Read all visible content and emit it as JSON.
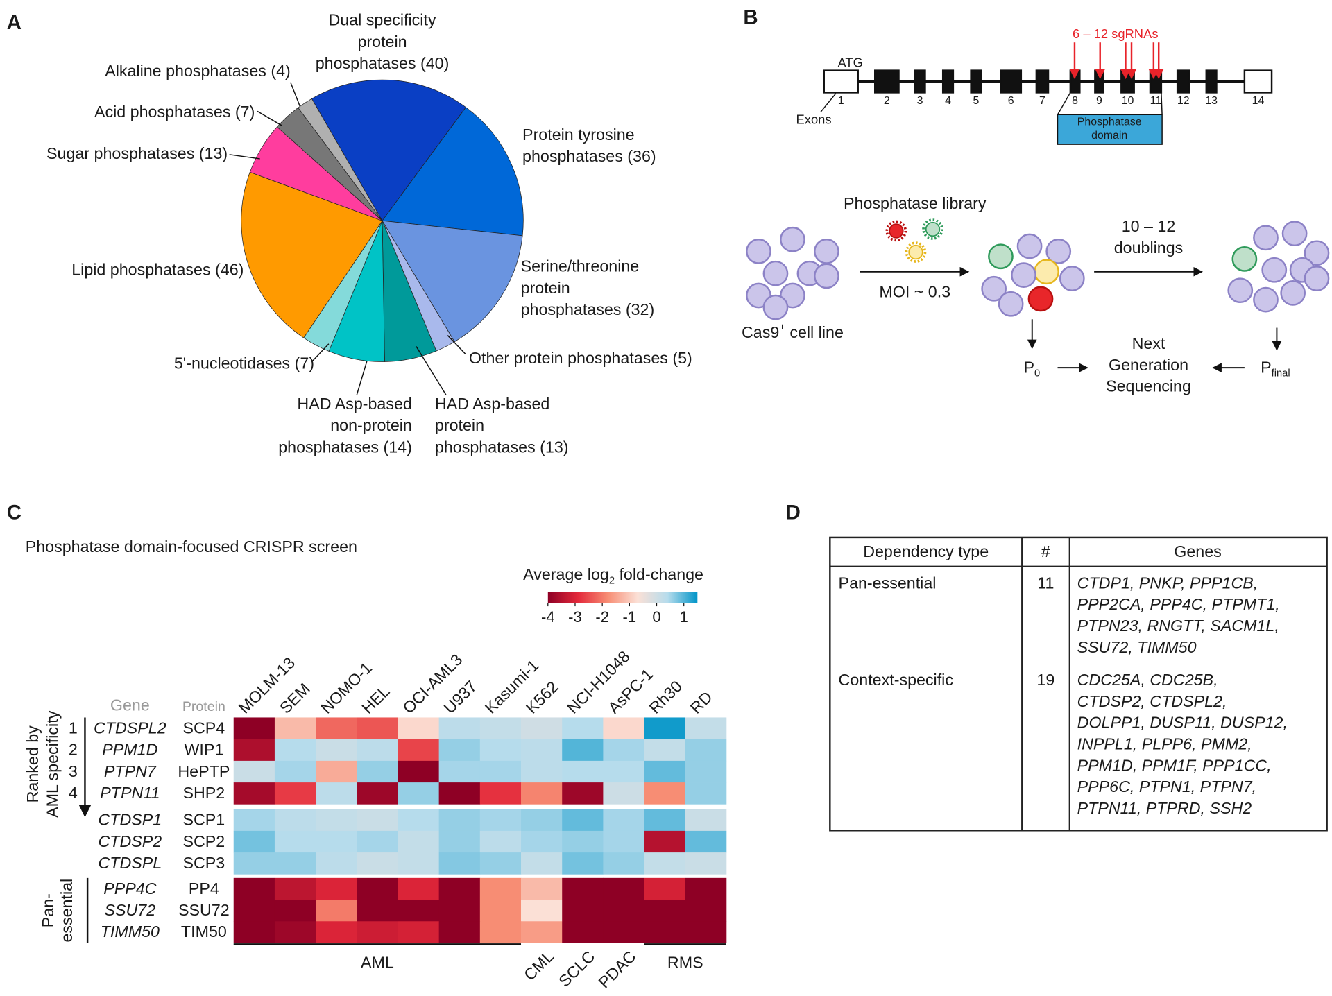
{
  "panel_labels": [
    "A",
    "B",
    "C",
    "D"
  ],
  "chart_data": [
    {
      "type": "pie",
      "categories": [
        "Dual specificity\nprotein\nphosphatases (40)",
        "Protein tyrosine\nphosphatases (36)",
        "Serine/threonine\nprotein\nphosphatases (32)",
        "Other protein phosphatases (5)",
        "HAD Asp-based\nprotein\nphosphatases (13)",
        "HAD Asp-based\nnon-protein\nphosphatases (14)",
        "5'-nucleotidases (7)",
        "Lipid phosphatases (46)",
        "Sugar phosphatases (13)",
        "Acid phosphatases (7)",
        "Alkaline phosphatases (4)"
      ],
      "values": [
        40,
        36,
        32,
        5,
        13,
        14,
        7,
        46,
        13,
        7,
        4
      ],
      "colors": [
        "#0a3fc4",
        "#0068d8",
        "#6a94e0",
        "#a9b9ec",
        "#009a9a",
        "#00c3c6",
        "#84dada",
        "#ff9a00",
        "#ff3d9e",
        "#777777",
        "#b0b0b0"
      ]
    },
    {
      "type": "heatmap",
      "title": "Phosphatase domain-focused CRISPR screen",
      "colorbar_label": [
        "Average log",
        "2",
        " fold-change"
      ],
      "zlim": [
        -4,
        1.5
      ],
      "zticks": [
        -4,
        -3,
        -2,
        -1,
        0,
        1
      ],
      "colormap": [
        "#8e0025",
        "#e3283a",
        "#f78d74",
        "#fbe0d6",
        "#b6dcec",
        "#0094c8"
      ],
      "gene_header": "Gene",
      "protein_header": "Protein",
      "column_groups": [
        {
          "label": "AML",
          "columns": [
            "MOLM-13",
            "SEM",
            "NOMO-1",
            "HEL",
            "OCI-AML3",
            "U937",
            "Kasumi-1"
          ]
        },
        {
          "label": "CML",
          "columns": [
            "K562"
          ]
        },
        {
          "label": "SCLC",
          "columns": [
            "NCI-H1048"
          ]
        },
        {
          "label": "PDAC",
          "columns": [
            "AsPC-1"
          ]
        },
        {
          "label": "RMS",
          "columns": [
            "Rh30",
            "RD"
          ]
        }
      ],
      "row_groups": [
        {
          "label": [
            "Ranked by",
            "AML specificity"
          ],
          "ranks": [
            "1",
            "2",
            "3",
            "4"
          ],
          "genes": [
            "CTDSPL2",
            "PPM1D",
            "PTPN7",
            "PTPN11"
          ],
          "proteins": [
            "SCP4",
            "WIP1",
            "HePTP",
            "SHP2"
          ],
          "values": [
            [
              -4,
              -1.2,
              -2.2,
              -2.4,
              -0.8,
              0.3,
              0.2,
              0,
              0.4,
              -0.8,
              1.4,
              0.2
            ],
            [
              -3.6,
              0.4,
              0.1,
              0.3,
              -2.6,
              0.6,
              0.4,
              0.3,
              1.0,
              0.5,
              0.2,
              0.6
            ],
            [
              0.1,
              0.5,
              -1.4,
              0.6,
              -4,
              0.5,
              0.5,
              0.3,
              0.4,
              0.4,
              0.9,
              0.6
            ],
            [
              -3.7,
              -2.7,
              0.3,
              -3.8,
              0.6,
              -4,
              -2.8,
              -1.9,
              -3.8,
              0.05,
              -1.8,
              0.6
            ]
          ]
        },
        {
          "genes": [
            "CTDSP1",
            "CTDSP2",
            "CTDSPL"
          ],
          "proteins": [
            "SCP1",
            "SCP2",
            "SCP3"
          ],
          "values": [
            [
              0.5,
              0.3,
              0.2,
              0.1,
              0.4,
              0.6,
              0.5,
              0.6,
              0.9,
              0.5,
              0.9,
              0.1
            ],
            [
              0.8,
              0.4,
              0.4,
              0.5,
              0.2,
              0.6,
              0.3,
              0.5,
              0.6,
              0.5,
              -3.5,
              0.9
            ],
            [
              0.6,
              0.6,
              0.3,
              0.1,
              0.2,
              0.7,
              0.6,
              0.2,
              0.8,
              0.6,
              0.2,
              0.1
            ]
          ]
        },
        {
          "label": [
            "Pan-",
            "essential"
          ],
          "genes": [
            "PPP4C",
            "SSU72",
            "TIMM50"
          ],
          "proteins": [
            "PP4",
            "SSU72",
            "TIM50"
          ],
          "values": [
            [
              -4,
              -3.4,
              -3.0,
              -4,
              -3.0,
              -4,
              -1.8,
              -1.2,
              -4,
              -4,
              -3.1,
              -4
            ],
            [
              -4,
              -4,
              -2.0,
              -4,
              -4,
              -4,
              -1.8,
              -0.7,
              -4,
              -4,
              -4,
              -4
            ],
            [
              -4,
              -3.8,
              -3.0,
              -3.2,
              -3.1,
              -4,
              -1.8,
              -1.6,
              -4,
              -4,
              -4,
              -4
            ]
          ]
        }
      ]
    }
  ],
  "gene_structure": {
    "start_codon": "ATG",
    "exons_label": "Exons",
    "exon_numbers": [
      "1",
      "2",
      "3",
      "4",
      "5",
      "6",
      "7",
      "8",
      "9",
      "10",
      "11",
      "12",
      "13",
      "14"
    ],
    "sgrna_label": "6 – 12 sgRNAs",
    "domain_label": [
      "Phosphatase",
      "domain"
    ]
  },
  "screen_workflow": {
    "library": "Phosphatase library",
    "moi": "MOI ~ 0.3",
    "cell_line": [
      "Cas9",
      "+",
      " cell line"
    ],
    "expansion": [
      "10 – 12",
      "doublings"
    ],
    "p0": [
      "P",
      "0"
    ],
    "pfinal": [
      "P",
      "final"
    ],
    "sequencing": [
      "Next",
      "Generation",
      "Sequencing"
    ]
  },
  "table": {
    "header": [
      "Dependency type",
      "#",
      "Genes"
    ],
    "rows": [
      {
        "type": "Pan-essential",
        "count": "11",
        "genes": [
          "CTDP1, PNKP, PPP1CB,",
          "PPP2CA, PPP4C, PTPMT1,",
          "PTPN23, RNGTT, SACM1L,",
          "SSU72, TIMM50"
        ]
      },
      {
        "type": "Context-specific",
        "count": "19",
        "genes": [
          "CDC25A, CDC25B,",
          "CTDSP2, CTDSPL2,",
          "DOLPP1, DUSP11, DUSP12,",
          "INPPL1, PLPP6, PMM2,",
          "PPM1D, PPM1F, PPP1CC,",
          "PPP6C, PTPN1, PTPN7,",
          "PTPN11, PTPRD, SSH2"
        ]
      }
    ]
  }
}
